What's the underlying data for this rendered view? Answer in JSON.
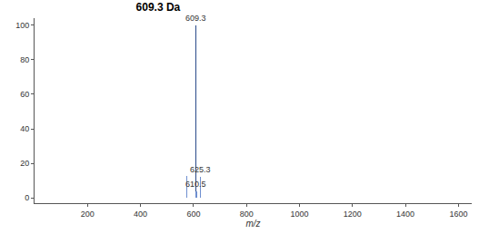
{
  "chart_data": {
    "type": "bar",
    "title": "609.3 Da",
    "x_label": "m/z",
    "x": [
      575,
      609.3,
      610.5,
      625.3
    ],
    "values": [
      13,
      100,
      4,
      12
    ],
    "colors": [
      "#6f8fd0",
      "#2a4a8a",
      "#6f8fd0",
      "#6f8fd0"
    ],
    "annotations": [
      {
        "x": 609.3,
        "text": "609.3"
      },
      {
        "x": 610.5,
        "text": "610.5"
      },
      {
        "x": 625.3,
        "text": "625.3"
      }
    ],
    "xlim": [
      0,
      1650
    ],
    "xticks": [
      200,
      400,
      600,
      800,
      1000,
      1200,
      1400,
      1600
    ],
    "ylim": [
      -3,
      104
    ],
    "yticks": [
      0,
      20,
      40,
      60,
      80,
      100
    ],
    "grid": false
  }
}
